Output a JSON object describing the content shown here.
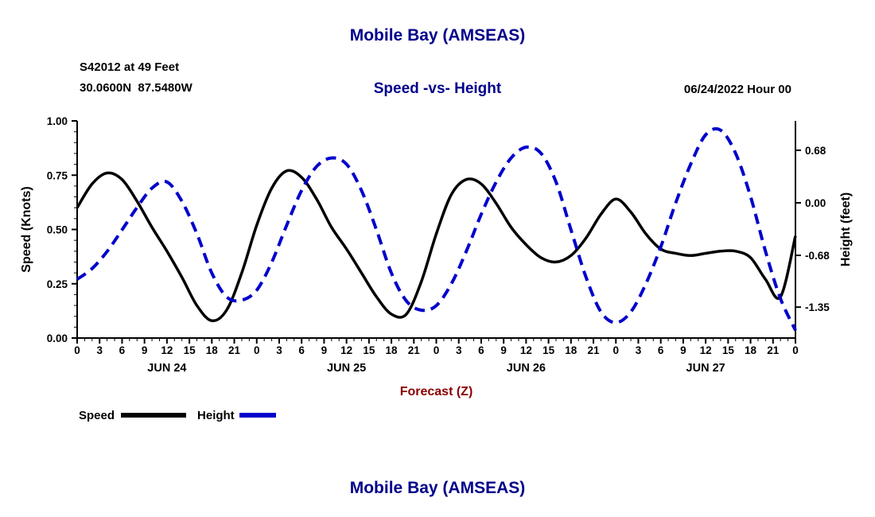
{
  "colors": {
    "background": "#FFFFFF",
    "title_blue": "#00008B",
    "text_black": "#000000",
    "speed_line": "#000000",
    "height_line": "#0000CC",
    "xlabel_red": "#8B0000"
  },
  "header": {
    "title": "Mobile Bay (AMSEAS)",
    "station_line1": "S42012 at 49 Feet",
    "station_line2": "30.0600N  87.5480W",
    "subtitle": "Speed -vs- Height",
    "datetime": "06/24/2022 Hour 00"
  },
  "legend": {
    "speed_label": "Speed",
    "height_label": "Height"
  },
  "footer": {
    "title": "Mobile Bay (AMSEAS)"
  },
  "chart_data": {
    "type": "line",
    "title": "Speed -vs- Height",
    "grid": false,
    "legend_position": "bottom-left",
    "x_axis": {
      "label": "Forecast (Z)",
      "total_hours": 96,
      "tick_interval": 3,
      "minor_interval": 1,
      "hours_per_day": 24,
      "hour_tick_labels": [
        "0",
        "3",
        "6",
        "9",
        "12",
        "15",
        "18",
        "21"
      ],
      "end_tick_label": "0",
      "day_labels": [
        "JUN 24",
        "JUN 25",
        "JUN 26",
        "JUN 27"
      ]
    },
    "left_axis": {
      "label": "Speed (Knots)",
      "min": 0.0,
      "max": 1.0,
      "tick_values": [
        0.0,
        0.25,
        0.5,
        0.75,
        1.0
      ],
      "tick_labels": [
        "0.00",
        "0.25",
        "0.50",
        "0.75",
        "1.00"
      ]
    },
    "right_axis": {
      "label": "Height (feet)",
      "min": -1.75,
      "max": 1.06,
      "tick_values": [
        0.68,
        0.0,
        -0.68,
        -1.35
      ],
      "tick_labels": [
        "0.68",
        "0.00",
        "-0.68",
        "-1.35"
      ]
    },
    "series": [
      {
        "name": "Speed",
        "axis": "left",
        "units": "knots",
        "color": "#000000",
        "style": "solid",
        "dash": null,
        "width": 3.5,
        "x_start": 0,
        "x_step": 2,
        "values": [
          0.6,
          0.71,
          0.76,
          0.73,
          0.63,
          0.51,
          0.4,
          0.28,
          0.15,
          0.08,
          0.13,
          0.3,
          0.52,
          0.69,
          0.77,
          0.74,
          0.64,
          0.51,
          0.41,
          0.3,
          0.19,
          0.11,
          0.11,
          0.26,
          0.48,
          0.66,
          0.73,
          0.71,
          0.62,
          0.51,
          0.43,
          0.37,
          0.35,
          0.38,
          0.46,
          0.57,
          0.64,
          0.58,
          0.48,
          0.41,
          0.39,
          0.38,
          0.39,
          0.4,
          0.4,
          0.37,
          0.27,
          0.19,
          0.47
        ]
      },
      {
        "name": "Height",
        "axis": "right",
        "units": "feet",
        "color": "#0000CC",
        "style": "dashed",
        "dash": "13 8",
        "width": 4,
        "x_start": 0,
        "x_step": 2,
        "values": [
          -0.99,
          -0.85,
          -0.63,
          -0.35,
          -0.06,
          0.19,
          0.27,
          0.02,
          -0.4,
          -0.91,
          -1.22,
          -1.26,
          -1.13,
          -0.77,
          -0.29,
          0.16,
          0.47,
          0.58,
          0.5,
          0.16,
          -0.35,
          -0.91,
          -1.27,
          -1.39,
          -1.33,
          -1.05,
          -0.63,
          -0.15,
          0.27,
          0.58,
          0.72,
          0.64,
          0.27,
          -0.35,
          -0.96,
          -1.41,
          -1.55,
          -1.41,
          -1.05,
          -0.57,
          0.0,
          0.5,
          0.88,
          0.94,
          0.64,
          0.08,
          -0.63,
          -1.24,
          -1.65
        ]
      }
    ]
  }
}
